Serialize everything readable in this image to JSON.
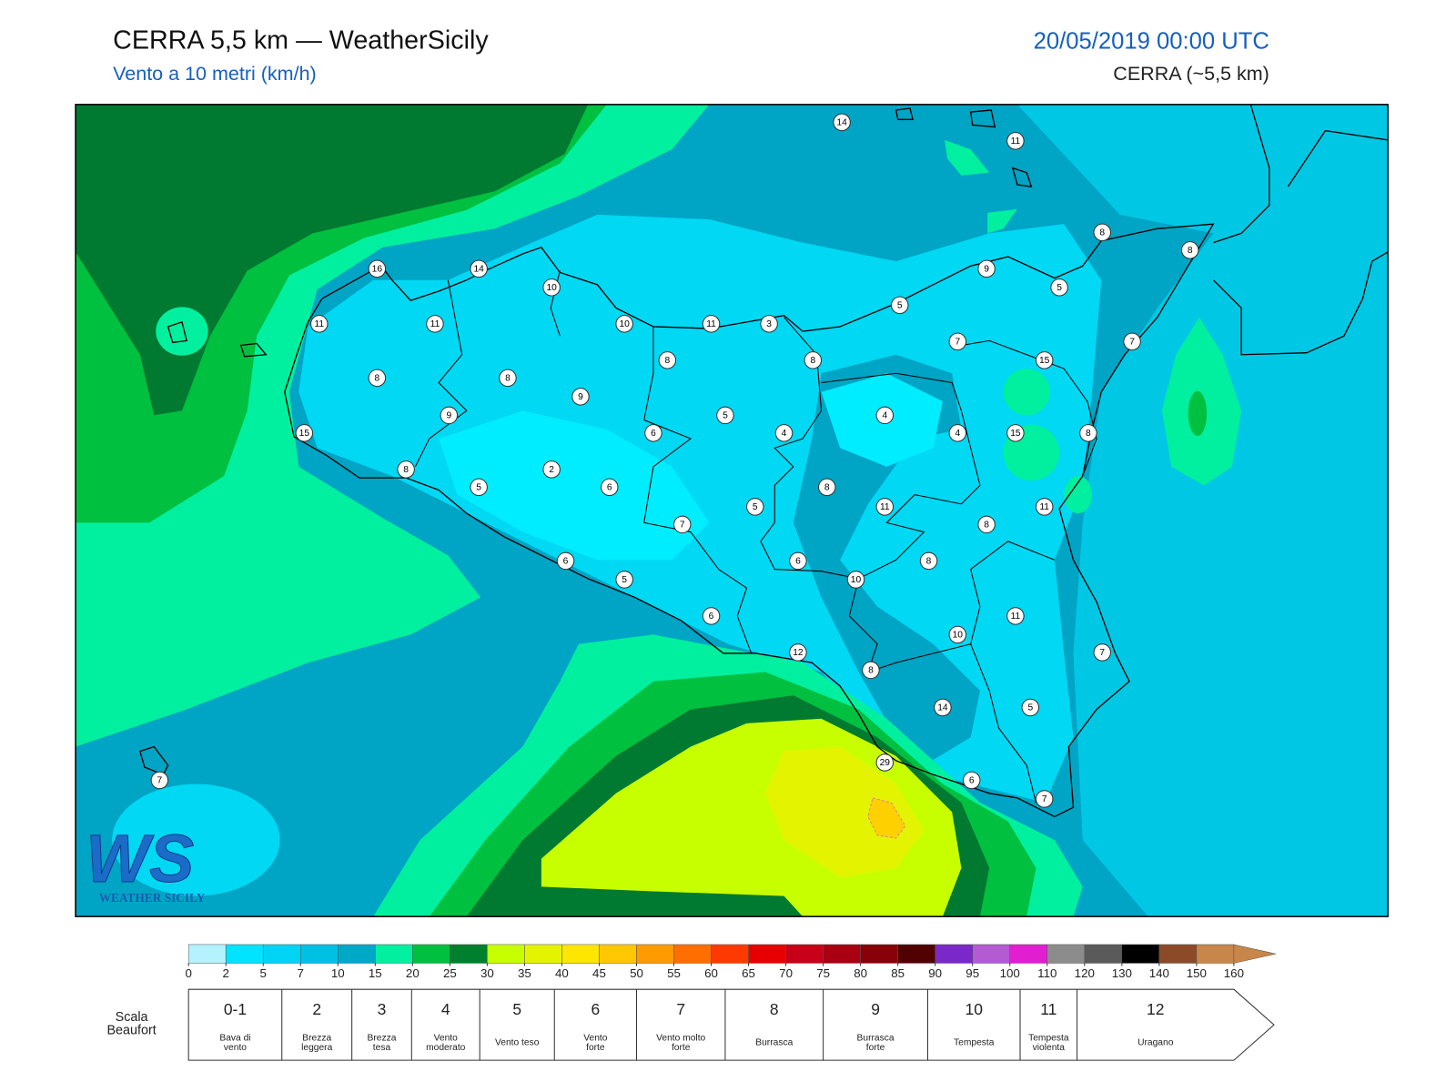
{
  "header": {
    "title": "CERRA 5,5 km — WeatherSicily",
    "subtitle": "Vento a 10 metri (km/h)",
    "date": "20/05/2019 00:00 UTC",
    "model": "CERRA (~5,5 km)"
  },
  "stations": [
    14,
    11,
    8,
    8,
    9,
    5,
    5,
    16,
    14,
    10,
    11,
    11,
    10,
    11,
    3,
    7,
    15,
    7,
    8,
    8,
    8,
    8,
    9,
    9,
    5,
    4,
    15,
    6,
    4,
    4,
    15,
    8,
    8,
    2,
    5,
    6,
    8,
    11,
    11,
    5,
    7,
    8,
    6,
    6,
    8,
    5,
    10,
    6,
    11,
    10,
    12,
    7,
    8,
    14,
    5,
    29,
    6,
    7,
    7
  ],
  "colorbar": {
    "ticks": [
      0,
      2,
      5,
      7,
      10,
      15,
      20,
      25,
      30,
      35,
      40,
      45,
      50,
      55,
      60,
      65,
      70,
      75,
      80,
      85,
      90,
      95,
      100,
      110,
      120,
      130,
      140,
      150,
      160
    ],
    "colors": [
      "#b4f2ff",
      "#00e4ff",
      "#00d4f4",
      "#00c0e4",
      "#00a8c8",
      "#00f0a0",
      "#00c040",
      "#00802c",
      "#c8ff00",
      "#e4f400",
      "#ffe600",
      "#ffc800",
      "#ff9a00",
      "#ff6e00",
      "#ff3a00",
      "#e80000",
      "#c80018",
      "#a80010",
      "#880008",
      "#500000",
      "#7a28c8",
      "#b45ad2",
      "#e020d0",
      "#8c8c8c",
      "#5a5a5a",
      "#000000",
      "#8c4a28",
      "#c8864a"
    ]
  },
  "beaufort": {
    "label": [
      "Scala",
      "Beaufort"
    ],
    "levels": [
      {
        "force": "0-1",
        "desc": [
          "Bava di",
          "vento"
        ]
      },
      {
        "force": "2",
        "desc": [
          "Brezza",
          "leggera"
        ]
      },
      {
        "force": "3",
        "desc": [
          "Brezza",
          "tesa"
        ]
      },
      {
        "force": "4",
        "desc": [
          "Vento",
          "moderato"
        ]
      },
      {
        "force": "5",
        "desc": [
          "Vento teso"
        ]
      },
      {
        "force": "6",
        "desc": [
          "Vento",
          "forte"
        ]
      },
      {
        "force": "7",
        "desc": [
          "Vento molto",
          "forte"
        ]
      },
      {
        "force": "8",
        "desc": [
          "Burrasca"
        ]
      },
      {
        "force": "9",
        "desc": [
          "Burrasca",
          "forte"
        ]
      },
      {
        "force": "10",
        "desc": [
          "Tempesta"
        ]
      },
      {
        "force": "11",
        "desc": [
          "Tempesta",
          "violenta"
        ]
      },
      {
        "force": "12",
        "desc": [
          "Uragano"
        ]
      }
    ]
  },
  "logo": {
    "letters": "WS",
    "name": "WEATHER SICILY"
  }
}
